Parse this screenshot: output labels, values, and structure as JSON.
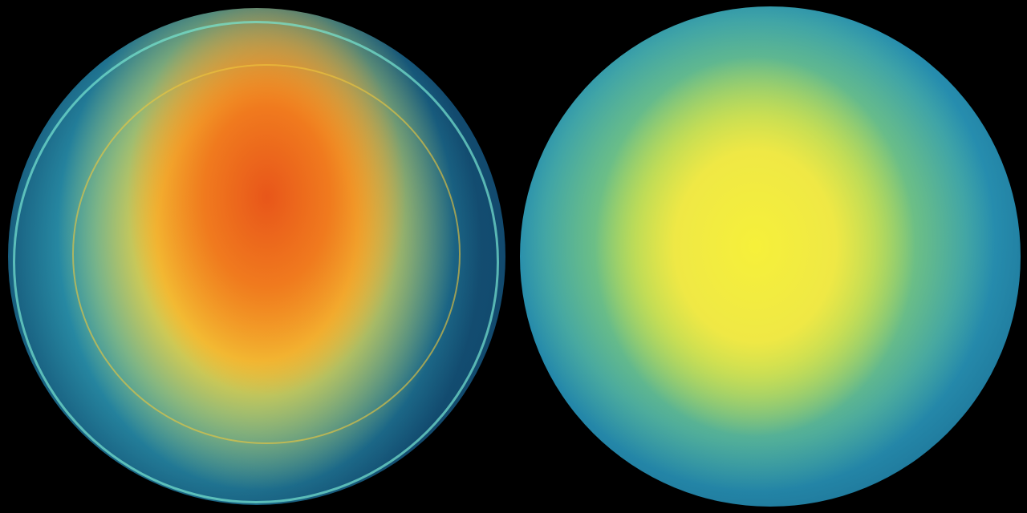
{
  "scene": {
    "background": "#000000",
    "left_globe": {
      "colors": {
        "core": "#e8561a",
        "mid": "#f5b825",
        "outer": "#2fa3b8",
        "ocean": "#124a6e"
      }
    },
    "right_globe": {
      "colors": {
        "core": "#f6f03a",
        "mid": "#8ccf6a",
        "outer": "#2a98b8",
        "edge": "#0e3550"
      }
    }
  }
}
